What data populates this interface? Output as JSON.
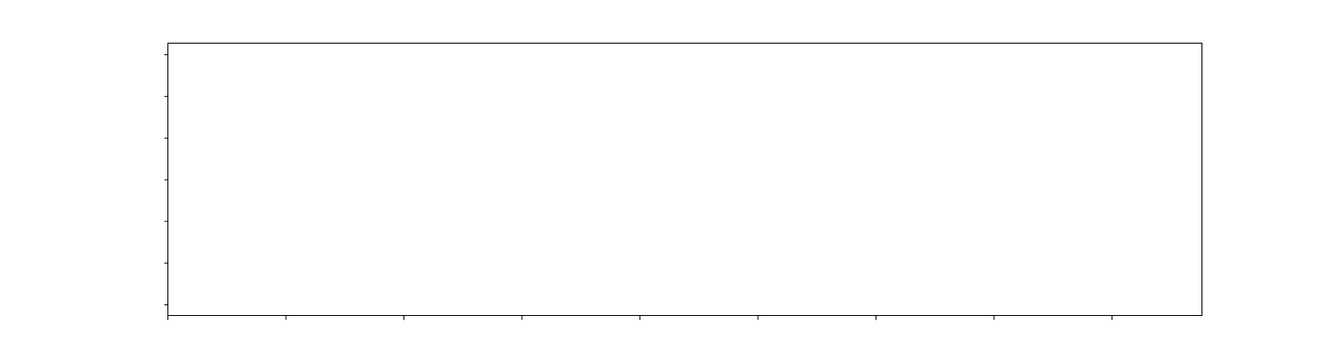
{
  "chart_data": {
    "type": "line",
    "title": "",
    "xlabel": "",
    "ylabel": "",
    "series": [],
    "x_tick_count": 9,
    "y_tick_count": 7,
    "x_tick_labels": [],
    "y_tick_labels": [],
    "grid": false,
    "legend": "none",
    "colors": {
      "frame": "#000000",
      "background": "#ffffff"
    }
  }
}
